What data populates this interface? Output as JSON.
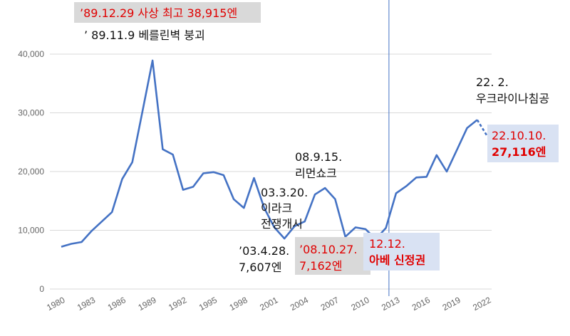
{
  "chart_data": {
    "type": "line",
    "ylim": [
      0,
      40000
    ],
    "yticks": [
      "0",
      "10,000",
      "20,000",
      "30,000",
      "40,000"
    ],
    "xlim": [
      1980,
      2022
    ],
    "xticks": [
      "1980",
      "1983",
      "1986",
      "1989",
      "1992",
      "1995",
      "1998",
      "2001",
      "2004",
      "2007",
      "2010",
      "2013",
      "2016",
      "2019",
      "2022"
    ],
    "grid": "horizontal",
    "series": [
      {
        "values": [
          [
            1980,
            7200
          ],
          [
            1981,
            7700
          ],
          [
            1982,
            8000
          ],
          [
            1983,
            9900
          ],
          [
            1984,
            11500
          ],
          [
            1985,
            13100
          ],
          [
            1986,
            18700
          ],
          [
            1987,
            21600
          ],
          [
            1988,
            30200
          ],
          [
            1989,
            38915
          ],
          [
            1990,
            23800
          ],
          [
            1991,
            22900
          ],
          [
            1992,
            16900
          ],
          [
            1993,
            17400
          ],
          [
            1994,
            19700
          ],
          [
            1995,
            19900
          ],
          [
            1996,
            19400
          ],
          [
            1997,
            15300
          ],
          [
            1998,
            13800
          ],
          [
            1999,
            18900
          ],
          [
            2000,
            13800
          ],
          [
            2001,
            10500
          ],
          [
            2002,
            8600
          ],
          [
            2003,
            10700
          ],
          [
            2004,
            11500
          ],
          [
            2005,
            16100
          ],
          [
            2006,
            17200
          ],
          [
            2007,
            15300
          ],
          [
            2008,
            8900
          ],
          [
            2009,
            10500
          ],
          [
            2010,
            10200
          ],
          [
            2011,
            8500
          ],
          [
            2012,
            10400
          ],
          [
            2013,
            16300
          ],
          [
            2014,
            17500
          ],
          [
            2015,
            19000
          ],
          [
            2016,
            19100
          ],
          [
            2017,
            22800
          ],
          [
            2018,
            20000
          ],
          [
            2019,
            23700
          ],
          [
            2020,
            27400
          ],
          [
            2021,
            28800
          ]
        ],
        "projection": [
          [
            2021,
            28800
          ],
          [
            2022,
            26000
          ]
        ],
        "color": "#4472c4"
      }
    ],
    "marker_line": {
      "x": 2012.3,
      "color": "#4472c4"
    },
    "annotations": [
      {
        "id": "peak",
        "lines": [
          "’89.12.29 사상 최고 38,915엔"
        ],
        "color": "#e00000",
        "box": "gray"
      },
      {
        "id": "berlin",
        "lines": [
          "’ 89.11.9 베를린벽 붕괴"
        ],
        "color": "#111111"
      },
      {
        "id": "iraq",
        "lines": [
          "03.3.20.",
          "이라크",
          "전쟁개시"
        ],
        "color": "#111111"
      },
      {
        "id": "lehman",
        "lines": [
          "08.9.15.",
          "리먼쇼크"
        ],
        "color": "#111111"
      },
      {
        "id": "low2003",
        "lines": [
          "’03.4.28.",
          "7,607엔"
        ],
        "color": "#111111"
      },
      {
        "id": "low2008",
        "lines": [
          "’08.10.27.",
          "7,162엔"
        ],
        "color": "#e00000",
        "box": "gray"
      },
      {
        "id": "abe",
        "lines": [
          "12.12.",
          "아베 신정권"
        ],
        "color": "#e00000",
        "bold_line": 1,
        "box": "blue"
      },
      {
        "id": "ukraine",
        "lines": [
          "22. 2.",
          "우크라이나침공"
        ],
        "color": "#111111"
      },
      {
        "id": "latest",
        "lines": [
          "22.10.10.",
          "27,116엔"
        ],
        "color": "#e00000",
        "bold_line": 1,
        "box": "blue"
      }
    ]
  }
}
